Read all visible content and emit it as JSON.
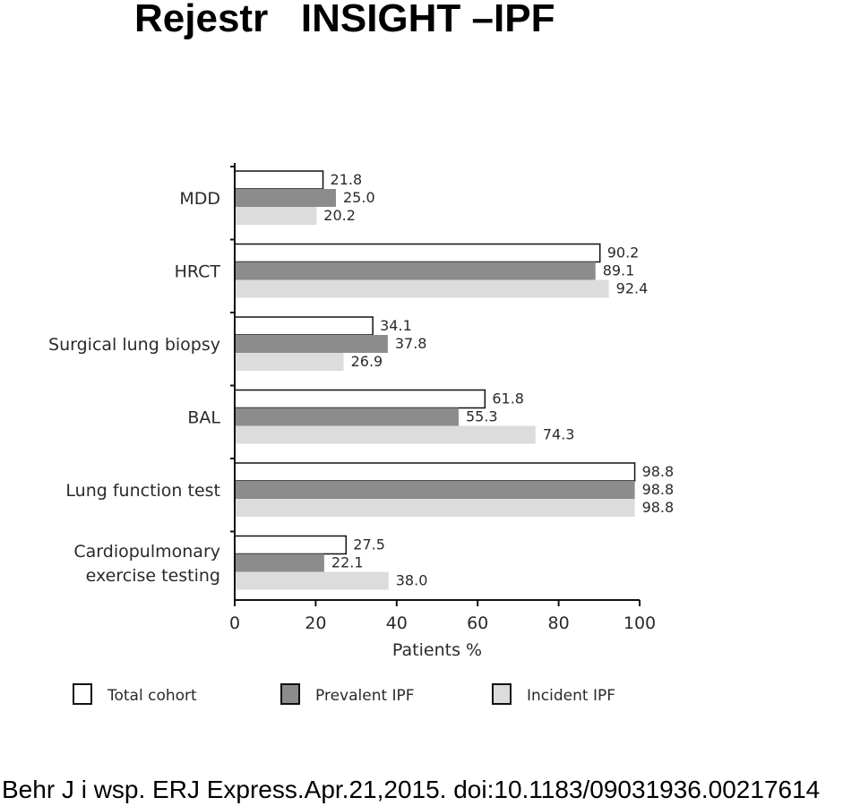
{
  "slide": {
    "title": "Rejestr   INSIGHT –IPF",
    "citation": "Behr J i wsp. ERJ Express.Apr.21,2015. doi:10.1183/09031936.00217614"
  },
  "chart_data": {
    "type": "bar",
    "orientation": "horizontal",
    "categories": [
      [
        "MDD"
      ],
      [
        "HRCT"
      ],
      [
        "Surgical lung biopsy"
      ],
      [
        "BAL"
      ],
      [
        "Lung function test"
      ],
      [
        "Cardiopulmonary",
        "exercise testing"
      ]
    ],
    "series": [
      {
        "name": "Total cohort",
        "color": "#ffffff",
        "values": [
          21.8,
          90.2,
          34.1,
          61.8,
          98.8,
          27.5
        ]
      },
      {
        "name": "Prevalent IPF",
        "color": "#8c8c8c",
        "values": [
          25.0,
          89.1,
          37.8,
          55.3,
          98.8,
          22.1
        ]
      },
      {
        "name": "Incident IPF",
        "color": "#dcdcdc",
        "values": [
          20.2,
          92.4,
          26.9,
          74.3,
          98.8,
          38.0
        ]
      }
    ],
    "value_labels": [
      [
        "21.8",
        "90.2",
        "34.1",
        "61.8",
        "98.8",
        "27.5"
      ],
      [
        "25.0",
        "89.1",
        "37.8",
        "55.3",
        "98.8",
        "22.1"
      ],
      [
        "20.2",
        "92.4",
        "26.9",
        "74.3",
        "98.8",
        "38.0"
      ]
    ],
    "xlabel": "Patients %",
    "xlim": [
      0,
      100
    ],
    "xticks": [
      "0",
      "20",
      "40",
      "60",
      "80",
      "100"
    ],
    "legend_position": "bottom",
    "grid": false
  }
}
